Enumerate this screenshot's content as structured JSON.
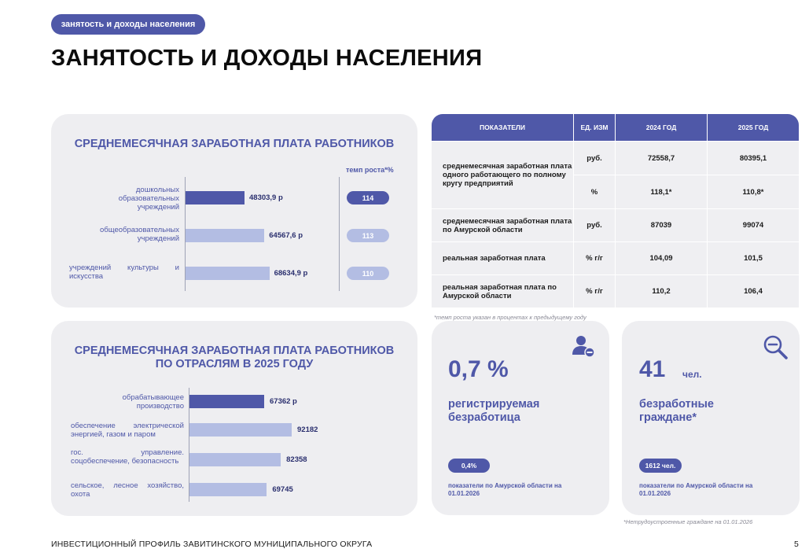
{
  "header": {
    "tag": "занятость и доходы населения",
    "title": "ЗАНЯТОСТЬ И ДОХОДЫ НАСЕЛЕНИЯ"
  },
  "colors": {
    "accent": "#4f58a8",
    "accent_light": "#b3bde3",
    "card_bg": "#eeeef1"
  },
  "wage_chart": {
    "title": "СРЕДНЕМЕСЯЧНАЯ ЗАРАБОТНАЯ ПЛАТА РАБОТНИКОВ",
    "rate_header": "темп роста*%",
    "chart_data": {
      "type": "bar",
      "categories": [
        "дошкольных образовательных учреждений",
        "общеобразовательных учреждений",
        "учреждений культуры и искусства"
      ],
      "values": [
        48303.9,
        64567.6,
        68634.9
      ],
      "value_labels": [
        "48303,9 р",
        "64567,6 р",
        "68634,9 р"
      ],
      "growth_rates": [
        "114",
        "113",
        "110"
      ]
    }
  },
  "industry_chart": {
    "title_line1": "СРЕДНЕМЕСЯЧНАЯ ЗАРАБОТНАЯ ПЛАТА РАБОТНИКОВ",
    "title_line2": "ПО ОТРАСЛЯМ В 2025 ГОДУ",
    "chart_data": {
      "type": "bar",
      "categories": [
        "обрабатывающее производство",
        "обеспечение электрической энергией, газом и паром",
        "гос. управление. соцобеспечение, безопасность",
        "сельское, лесное хозяйство, охота"
      ],
      "values": [
        67362,
        92182,
        82358,
        69745
      ],
      "value_labels": [
        "67362 р",
        "92182",
        "82358",
        "69745"
      ]
    }
  },
  "table": {
    "headers": [
      "ПОКАЗАТЕЛИ",
      "ЕД. ИЗМ",
      "2024 ГОД",
      "2025 ГОД"
    ],
    "rows": [
      {
        "label": "среднемесячная заработная плата одного работающего по полному кругу предприятий",
        "unit": "руб.",
        "y2024": "72558,7",
        "y2025": "80395,1"
      },
      {
        "label": "",
        "unit": "%",
        "y2024": "118,1*",
        "y2025": "110,8*"
      },
      {
        "label": "среднемесячная заработная плата по Амурской области",
        "unit": "руб.",
        "y2024": "87039",
        "y2025": "99074"
      },
      {
        "label": "реальная заработная плата",
        "unit": "% г/г",
        "y2024": "104,09",
        "y2025": "101,5"
      },
      {
        "label": "реальная заработная плата по Амурской области",
        "unit": "% г/г",
        "y2024": "110,2",
        "y2025": "106,4"
      }
    ],
    "note": "*темп роста указан в процентах к предыдущему году"
  },
  "unemployment": {
    "value": "0,7 %",
    "label": "регистрируемая безработица",
    "region_value": "0,4%",
    "region_note": "показатели по Амурской области на 01.01.2026"
  },
  "unemployed": {
    "value": "41",
    "unit": "чел.",
    "label": "безработные граждане*",
    "region_value": "1612 чел.",
    "region_note": "показатели по Амурской области на 01.01.2026",
    "note": "*Нетрудоустроенные граждане на 01.01.2026"
  },
  "footer": {
    "text": "ИНВЕСТИЦИОННЫЙ ПРОФИЛЬ ЗАВИТИНСКОГО МУНИЦИПАЛЬНОГО ОКРУГА",
    "page": "5"
  }
}
